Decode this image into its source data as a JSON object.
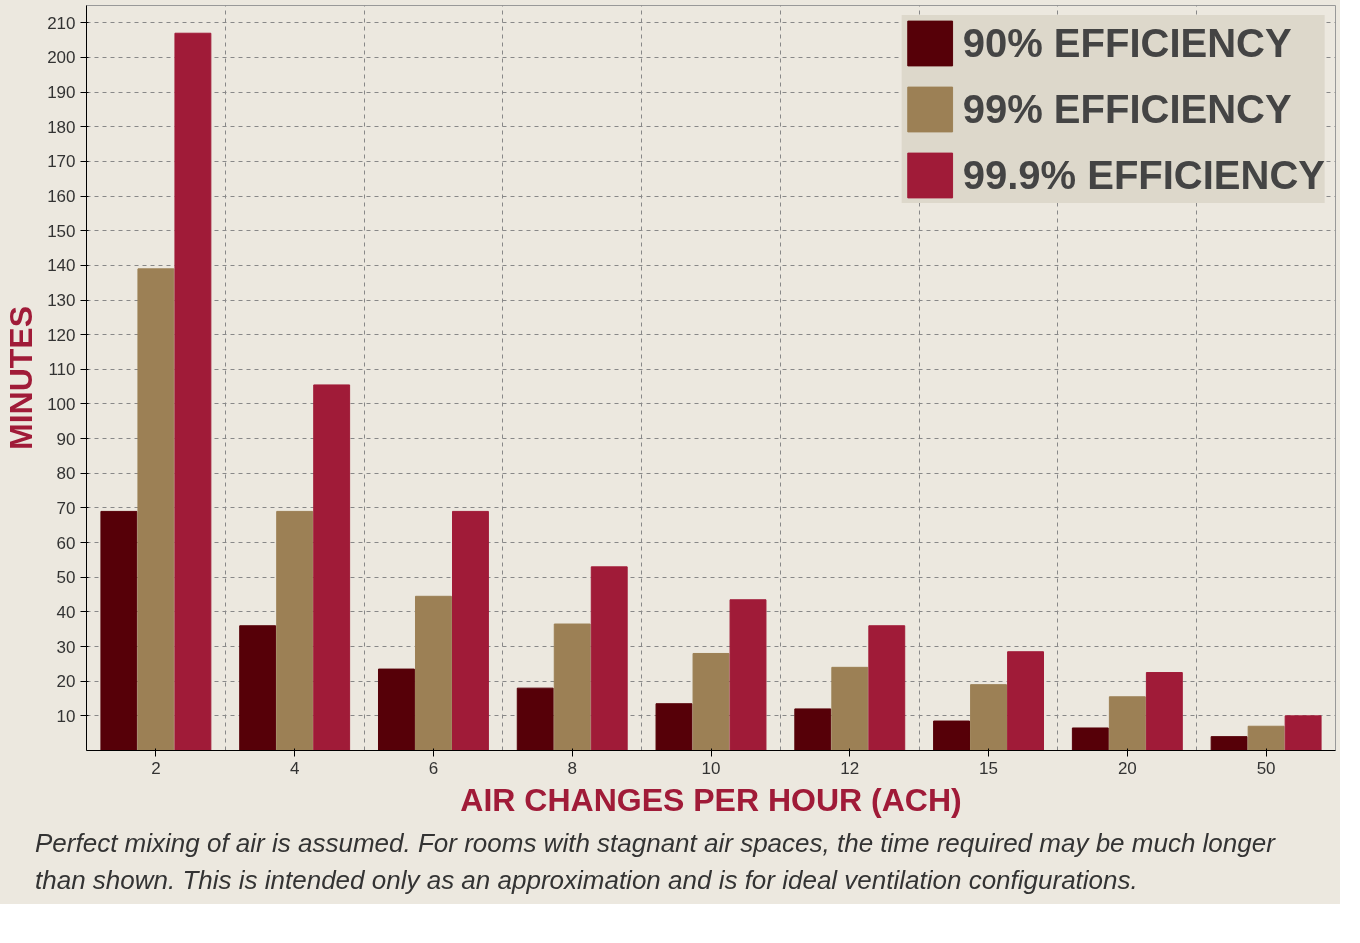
{
  "chart_data": {
    "type": "bar",
    "xlabel": "AIR CHANGES PER HOUR (ACH)",
    "ylabel": "MINUTES",
    "categories": [
      "2",
      "4",
      "6",
      "8",
      "10",
      "12",
      "15",
      "20",
      "50"
    ],
    "series": [
      {
        "name": "90% EFFICIENCY",
        "color": "#560008",
        "values": [
          69,
          36,
          23.5,
          18,
          13.5,
          12,
          8.5,
          6.5,
          4
        ]
      },
      {
        "name": "99% EFFICIENCY",
        "color": "#9c8055",
        "values": [
          139,
          69,
          44.5,
          36.5,
          28,
          24,
          19,
          15.5,
          7
        ]
      },
      {
        "name": "99.9% EFFICIENCY",
        "color": "#a01b38",
        "values": [
          207,
          105.5,
          69,
          53,
          43.5,
          36,
          28.5,
          22.5,
          10
        ]
      }
    ],
    "ylim": [
      0,
      215
    ],
    "yticks": [
      10,
      20,
      30,
      40,
      50,
      60,
      70,
      80,
      90,
      100,
      110,
      120,
      130,
      140,
      150,
      160,
      170,
      180,
      190,
      200,
      210
    ],
    "grid": true,
    "legend": "top right",
    "annotations": [
      "Perfect mixing of air is assumed. For rooms with stagnant air spaces, the time required may be much longer than shown. This is intended only as an approximation and is for ideal ventilation configurations."
    ]
  }
}
